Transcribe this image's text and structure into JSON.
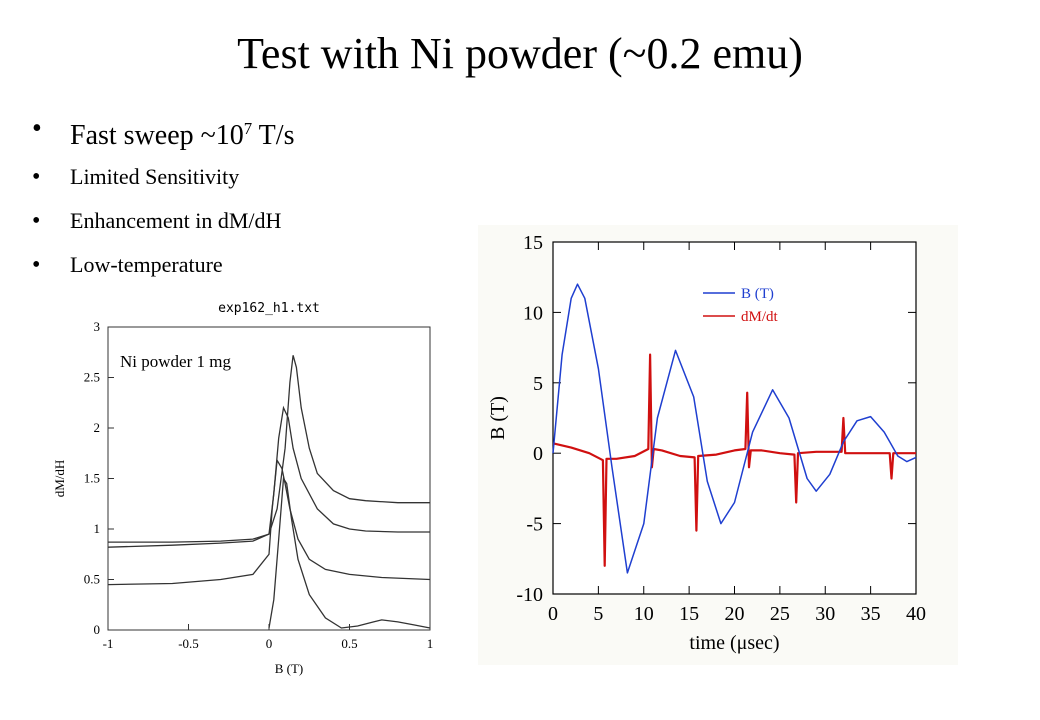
{
  "slide": {
    "title": "Test with Ni powder (~0.2 emu)",
    "bullets": {
      "fast_sweep_text": "Fast sweep ~10",
      "fast_sweep_exponent": "7",
      "fast_sweep_unit": " T/s",
      "limited": "Limited Sensitivity",
      "enhancement": "Enhancement in dM/dH",
      "lowtemp": "Low-temperature"
    },
    "bullet_glyph": "•"
  },
  "chart_data": [
    {
      "type": "line",
      "title": "exp162_h1.txt",
      "annotation": "Ni powder 1 mg",
      "xlabel": "B (T)",
      "ylabel": "dM/dH",
      "xlim": [
        -1,
        1
      ],
      "ylim": [
        0,
        3
      ],
      "xticks": [
        "-1",
        "-0.5",
        "0",
        "0.5",
        "1"
      ],
      "yticks": [
        "0",
        "0.5",
        "1",
        "1.5",
        "2",
        "2.5",
        "3"
      ],
      "grid": false,
      "legend": "none",
      "line_color": "#333333",
      "series": [
        {
          "x": [
            -1,
            -0.6,
            -0.3,
            -0.1,
            0,
            0.05,
            0.1,
            0.13,
            0.15,
            0.17,
            0.2,
            0.25,
            0.3,
            0.4,
            0.5,
            0.6,
            0.8,
            1
          ],
          "y": [
            0.87,
            0.87,
            0.88,
            0.9,
            0.95,
            1.2,
            1.8,
            2.45,
            2.72,
            2.6,
            2.2,
            1.8,
            1.55,
            1.38,
            1.3,
            1.28,
            1.26,
            1.26
          ]
        },
        {
          "x": [
            -1,
            -0.6,
            -0.3,
            -0.1,
            0,
            0.03,
            0.06,
            0.09,
            0.12,
            0.15,
            0.2,
            0.3,
            0.4,
            0.5,
            0.6,
            0.8,
            1
          ],
          "y": [
            0.82,
            0.84,
            0.86,
            0.88,
            0.95,
            1.35,
            1.9,
            2.2,
            2.1,
            1.8,
            1.5,
            1.2,
            1.05,
            1.0,
            0.98,
            0.97,
            0.97
          ]
        },
        {
          "x": [
            -1,
            -0.6,
            -0.3,
            -0.1,
            0,
            0.02,
            0.05,
            0.08,
            0.1,
            0.13,
            0.18,
            0.25,
            0.35,
            0.5,
            0.7,
            1
          ],
          "y": [
            0.45,
            0.46,
            0.5,
            0.55,
            0.75,
            1.2,
            1.68,
            1.6,
            1.45,
            1.2,
            0.9,
            0.7,
            0.6,
            0.55,
            0.52,
            0.5
          ]
        },
        {
          "x": [
            0,
            0.03,
            0.06,
            0.09,
            0.11,
            0.14,
            0.18,
            0.25,
            0.35,
            0.45,
            0.55,
            0.65,
            0.7,
            0.8,
            0.9,
            1
          ],
          "y": [
            0.02,
            0.3,
            0.9,
            1.5,
            1.45,
            1.1,
            0.7,
            0.35,
            0.12,
            0.02,
            0.04,
            0.08,
            0.1,
            0.08,
            0.05,
            0.02
          ]
        }
      ]
    },
    {
      "type": "line",
      "xlabel": "time (μsec)",
      "ylabel": "B (T)",
      "xlim": [
        0,
        40
      ],
      "ylim": [
        -10,
        15
      ],
      "xticks": [
        "0",
        "5",
        "10",
        "15",
        "20",
        "25",
        "30",
        "35",
        "40"
      ],
      "yticks": [
        "-10",
        "-5",
        "0",
        "5",
        "10",
        "15"
      ],
      "grid": false,
      "legend": "top-right",
      "series": [
        {
          "name": "B (T)",
          "color": "#1f3fd0",
          "x": [
            0,
            1,
            2,
            2.7,
            3.5,
            5,
            6.5,
            8.2,
            10,
            11.5,
            13.5,
            15.5,
            17,
            18.5,
            20,
            22,
            24.2,
            26,
            28,
            29,
            30.5,
            32,
            33.5,
            35,
            36.5,
            38,
            39,
            40
          ],
          "y": [
            0,
            7,
            11,
            12,
            11,
            6,
            -1,
            -8.5,
            -5,
            2.5,
            7.3,
            4,
            -2,
            -5,
            -3.5,
            1.5,
            4.5,
            2.5,
            -1.8,
            -2.7,
            -1.5,
            0.8,
            2.3,
            2.6,
            1.5,
            -0.2,
            -0.6,
            -0.3
          ]
        },
        {
          "name": "dM/dt",
          "color": "#d01010",
          "x": [
            0,
            2,
            4,
            5.5,
            5.7,
            5.9,
            7,
            9,
            10.5,
            10.7,
            10.9,
            11.1,
            12,
            14,
            15.6,
            15.8,
            16,
            18,
            20,
            21.2,
            21.4,
            21.6,
            21.8,
            23,
            25,
            26.6,
            26.8,
            27,
            29,
            31,
            31.8,
            32,
            32.2,
            34,
            36,
            37.1,
            37.3,
            37.5,
            39,
            40
          ],
          "y": [
            0.7,
            0.4,
            0,
            -0.5,
            -8,
            -0.4,
            -0.4,
            -0.2,
            0.3,
            7,
            -1,
            0.3,
            0.2,
            -0.2,
            -0.3,
            -5.5,
            -0.2,
            -0.1,
            0.2,
            0.3,
            4.3,
            -1,
            0.2,
            0.2,
            0,
            -0.1,
            -3.5,
            0,
            0.1,
            0.1,
            0.1,
            2.5,
            0,
            0,
            0,
            0,
            -1.8,
            0,
            0,
            0
          ]
        }
      ]
    }
  ]
}
